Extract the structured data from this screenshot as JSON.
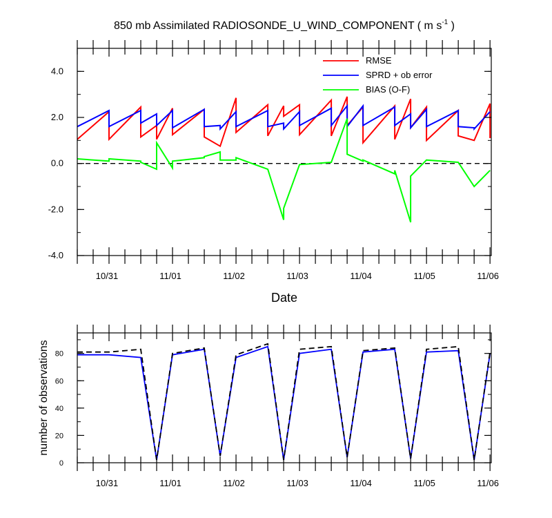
{
  "chart_data": [
    {
      "type": "line",
      "title_main": "850 mb Assimilated RADIOSONDE_U_WIND_COMPONENT ( m s",
      "title_sup": "-1",
      "title_end": " )",
      "xlabel": "Date",
      "ylabel": "",
      "xlim": [
        0,
        6.52
      ],
      "ylim": [
        -4.0,
        5.0
      ],
      "yticks": [
        4.0,
        2.0,
        0.0,
        -2.0,
        -4.0
      ],
      "ytick_labels": [
        "4.0",
        "2.0",
        "0.0",
        "-2.0",
        "-4.0"
      ],
      "xticks": [
        0.5,
        1.5,
        2.5,
        3.5,
        4.5,
        5.5,
        6.5
      ],
      "xtick_labels": [
        "10/31",
        "11/01",
        "11/02",
        "11/03",
        "11/04",
        "11/05",
        "11/06"
      ],
      "zero_line": true,
      "legend_position": "top-right",
      "series": [
        {
          "name": "RMSE",
          "color": "#ff0000",
          "points": [
            [
              0,
              1.05
            ],
            [
              0.5,
              2.25
            ],
            [
              0.5,
              1.05
            ],
            [
              1,
              2.2
            ],
            [
              1,
              1.15
            ],
            [
              1,
              1.15
            ],
            [
              1.0,
              1.15
            ],
            [
              1.0,
              1.15
            ],
            [
              1.0,
              1.15
            ],
            [
              1.0,
              1.15
            ],
            [
              1.0,
              1.15
            ],
            [
              1.0,
              1.15
            ],
            [
              1.0,
              1.15
            ],
            [
              1.0,
              1.15
            ],
            [
              1.0,
              1.15
            ],
            [
              1.0,
              1.15
            ],
            [
              1.0,
              1.15
            ],
            [
              1.0,
              1.15
            ],
            [
              1.0,
              1.15
            ],
            [
              1.0,
              1.15
            ],
            [
              1.0,
              1.15
            ],
            [
              1.0,
              1.15
            ],
            [
              1.0,
              1.15
            ],
            [
              1.0,
              1.15
            ],
            [
              1.0,
              1.15
            ],
            [
              1.0,
              1.15
            ],
            [
              1.0,
              1.15
            ],
            [
              1.0,
              1.15
            ],
            [
              1.0,
              1.15
            ],
            [
              1.0,
              1.15
            ],
            [
              1.0,
              1.15
            ],
            [
              1.0,
              1.15
            ],
            [
              1.0,
              1.15
            ],
            [
              1.0,
              1.15
            ],
            [
              1.0,
              1.15
            ],
            [
              1.0,
              1.15
            ],
            [
              1.0,
              1.15
            ],
            [
              1.0,
              1.15
            ],
            [
              1.0,
              1.15
            ],
            [
              1.0,
              1.15
            ],
            [
              1.0,
              1.15
            ],
            [
              1.0,
              1.15
            ],
            [
              1.0,
              1.15
            ],
            [
              1.0,
              1.15
            ],
            [
              1.0,
              1.15
            ],
            [
              1.0,
              1.15
            ],
            [
              1.0,
              1.15
            ],
            [
              1.0,
              1.15
            ],
            [
              1.0,
              1.15
            ],
            [
              1.0,
              1.15
            ],
            [
              1.0,
              1.15
            ],
            [
              1.0,
              1.15
            ],
            [
              1.0,
              1.15
            ],
            [
              1.0,
              1.15
            ],
            [
              1.0,
              1.15
            ],
            [
              1.0,
              1.15
            ],
            [
              1.0,
              1.15
            ],
            [
              1.0,
              1.15
            ],
            [
              1.0,
              1.15
            ],
            [
              1.0,
              1.15
            ],
            [
              1.0,
              1.15
            ],
            [
              1.0,
              1.15
            ],
            [
              1.0,
              1.15
            ],
            [
              1.0,
              1.15
            ],
            [
              1.0,
              1.15
            ],
            [
              1.0,
              1.15
            ],
            [
              1.0,
              1.15
            ],
            [
              1.0,
              1.15
            ],
            [
              1.0,
              1.15
            ],
            [
              1.0,
              1.15
            ],
            [
              1.0,
              1.15
            ],
            [
              1.0,
              1.15
            ],
            [
              1.0,
              1.15
            ],
            [
              1.0,
              1.15
            ],
            [
              1.0,
              1.15
            ],
            [
              1.0,
              1.15
            ],
            [
              1.0,
              1.15
            ],
            [
              1.0,
              1.15
            ],
            [
              1.0,
              1.15
            ],
            [
              1.0,
              1.15
            ],
            [
              1.0,
              1.15
            ],
            [
              1.0,
              1.15
            ],
            [
              1.0,
              1.15
            ],
            [
              1.0,
              1.15
            ],
            [
              1.0,
              1.15
            ],
            [
              1.0,
              1.15
            ],
            [
              1.0,
              1.15
            ],
            [
              1.0,
              1.15
            ],
            [
              1.0,
              1.15
            ],
            [
              1.0,
              1.15
            ],
            [
              1.0,
              1.15
            ],
            [
              1.0,
              1.15
            ],
            [
              1.0,
              1.15
            ],
            [
              1.0,
              1.15
            ],
            [
              1.0,
              1.15
            ],
            [
              1.0,
              1.15
            ],
            [
              1.0,
              1.15
            ]
          ]
        }
      ]
    }
  ]
}
